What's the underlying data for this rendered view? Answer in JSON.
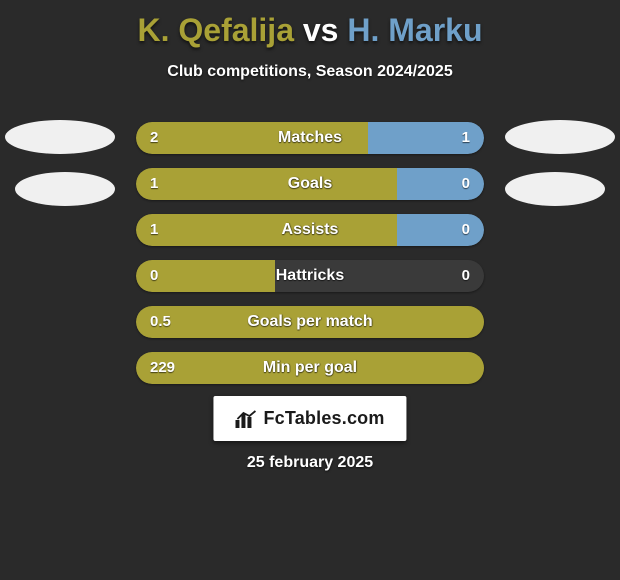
{
  "title": {
    "player1": "K. Qefalija",
    "vs": "vs",
    "player2": "H. Marku",
    "color_player1": "#a9a136",
    "color_vs": "#ffffff",
    "color_player2": "#6fa0c9"
  },
  "subtitle": "Club competitions, Season 2024/2025",
  "colors": {
    "left_bar": "#a9a136",
    "right_bar": "#6fa0c9",
    "background": "#2a2a2a",
    "track": "#3a3a3a"
  },
  "stats": [
    {
      "label": "Matches",
      "left_val": "2",
      "right_val": "1",
      "left_pct": 66.7,
      "right_pct": 33.3
    },
    {
      "label": "Goals",
      "left_val": "1",
      "right_val": "0",
      "left_pct": 75,
      "right_pct": 25
    },
    {
      "label": "Assists",
      "left_val": "1",
      "right_val": "0",
      "left_pct": 75,
      "right_pct": 25
    },
    {
      "label": "Hattricks",
      "left_val": "0",
      "right_val": "0",
      "left_pct": 40,
      "right_pct": 0
    },
    {
      "label": "Goals per match",
      "left_val": "0.5",
      "right_val": "",
      "left_pct": 100,
      "right_pct": 0
    },
    {
      "label": "Min per goal",
      "left_val": "229",
      "right_val": "",
      "left_pct": 100,
      "right_pct": 0
    }
  ],
  "logo_text": "FcTables.com",
  "date": "25 february 2025"
}
